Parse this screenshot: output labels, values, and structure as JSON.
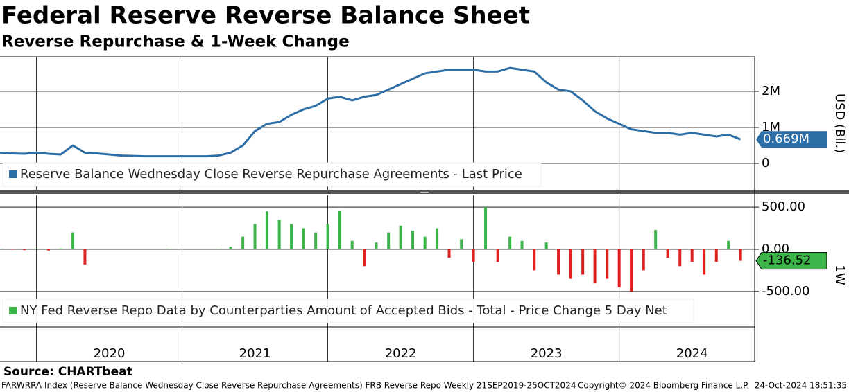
{
  "header": {
    "title": "Federal Reserve Reverse Balance Sheet",
    "subtitle": "Reverse Repurchase & 1-Week Change"
  },
  "chart_data": [
    {
      "type": "line",
      "series": [
        {
          "name": "Reserve Balance Wednesday Close Reverse Repurchase Agreements - Last Price",
          "color": "#2e6ea6",
          "values": [
            0.3,
            0.28,
            0.27,
            0.3,
            0.27,
            0.25,
            0.5,
            0.3,
            0.28,
            0.25,
            0.22,
            0.21,
            0.2,
            0.2,
            0.2,
            0.2,
            0.2,
            0.2,
            0.22,
            0.3,
            0.5,
            0.9,
            1.1,
            1.15,
            1.35,
            1.5,
            1.6,
            1.8,
            1.85,
            1.75,
            1.85,
            1.9,
            2.05,
            2.2,
            2.35,
            2.5,
            2.55,
            2.6,
            2.6,
            2.6,
            2.55,
            2.55,
            2.65,
            2.6,
            2.55,
            2.25,
            2.05,
            2.0,
            1.75,
            1.45,
            1.25,
            1.1,
            0.95,
            0.9,
            0.85,
            0.85,
            0.8,
            0.85,
            0.8,
            0.75,
            0.8,
            0.669
          ]
        }
      ],
      "last_value_label": "0.669M",
      "x": [
        2019.75,
        2019.833,
        2019.917,
        2020.0,
        2020.083,
        2020.167,
        2020.25,
        2020.333,
        2020.417,
        2020.5,
        2020.583,
        2020.667,
        2020.75,
        2020.833,
        2020.917,
        2021.0,
        2021.083,
        2021.167,
        2021.25,
        2021.333,
        2021.417,
        2021.5,
        2021.583,
        2021.667,
        2021.75,
        2021.833,
        2021.917,
        2022.0,
        2022.083,
        2022.167,
        2022.25,
        2022.333,
        2022.417,
        2022.5,
        2022.583,
        2022.667,
        2022.75,
        2022.833,
        2022.917,
        2023.0,
        2023.083,
        2023.167,
        2023.25,
        2023.333,
        2023.417,
        2023.5,
        2023.583,
        2023.667,
        2023.75,
        2023.833,
        2023.917,
        2024.0,
        2024.083,
        2024.167,
        2024.25,
        2024.333,
        2024.417,
        2024.5,
        2024.583,
        2024.667,
        2024.75,
        2024.833
      ],
      "xlim": [
        2019.75,
        2024.93
      ],
      "xticks": [
        2020,
        2021,
        2022,
        2023,
        2024
      ],
      "ylim": [
        -0.73,
        2.96
      ],
      "yticks": [
        0,
        {
          "value": 1,
          "label": "1M"
        },
        {
          "value": 2,
          "label": "2M"
        }
      ],
      "ylabel": "USD (Bil.)",
      "grid": true
    },
    {
      "type": "bar",
      "series": [
        {
          "name": "NY Fed Reverse Repo Data by Counterparties Amount of Accepted Bids - Total - Price Change 5 Day Net",
          "color": "#3cb44a",
          "negative_color": "#e02020",
          "values": [
            5,
            -5,
            -10,
            5,
            -15,
            10,
            200,
            -180,
            0,
            0,
            0,
            0,
            0,
            0,
            5,
            0,
            0,
            0,
            5,
            30,
            150,
            300,
            450,
            350,
            300,
            250,
            200,
            300,
            460,
            100,
            -200,
            80,
            200,
            280,
            220,
            150,
            250,
            -100,
            120,
            -150,
            500,
            -150,
            150,
            100,
            -250,
            80,
            -300,
            -350,
            -300,
            -400,
            -350,
            -450,
            -500,
            -250,
            230,
            -100,
            -200,
            -150,
            -300,
            -150,
            100,
            -136.52
          ]
        }
      ],
      "x": [
        2019.75,
        2019.833,
        2019.917,
        2020.0,
        2020.083,
        2020.167,
        2020.25,
        2020.333,
        2020.417,
        2020.5,
        2020.583,
        2020.667,
        2020.75,
        2020.833,
        2020.917,
        2021.0,
        2021.083,
        2021.167,
        2021.25,
        2021.333,
        2021.417,
        2021.5,
        2021.583,
        2021.667,
        2021.75,
        2021.833,
        2021.917,
        2022.0,
        2022.083,
        2022.167,
        2022.25,
        2022.333,
        2022.417,
        2022.5,
        2022.583,
        2022.667,
        2022.75,
        2022.833,
        2022.917,
        2023.0,
        2023.083,
        2023.167,
        2023.25,
        2023.333,
        2023.417,
        2023.5,
        2023.583,
        2023.667,
        2023.75,
        2023.833,
        2023.917,
        2024.0,
        2024.083,
        2024.167,
        2024.25,
        2024.333,
        2024.417,
        2024.5,
        2024.583,
        2024.667,
        2024.75,
        2024.833
      ],
      "xlim": [
        2019.75,
        2024.93
      ],
      "xticks": [
        2020,
        2021,
        2022,
        2023,
        2024
      ],
      "ylim": [
        -920,
        640
      ],
      "yticks": [
        {
          "value": -500,
          "label": "-500.00"
        },
        {
          "value": 0,
          "label": "0.00"
        },
        {
          "value": 500,
          "label": "500.00"
        }
      ],
      "ylabel": "1W",
      "grid": true
    }
  ],
  "footer": {
    "source": "Source:  CHARTbeat",
    "description": "FARWRRA Index (Reserve Balance Wednesday Close Reverse Repurchase Agreements) FRB Reverse Repo  Weekly 21SEP2019-25OCT2024",
    "copyright": "Copyright© 2024 Bloomberg Finance L.P.",
    "timestamp": "24-Oct-2024 18:51:35"
  }
}
